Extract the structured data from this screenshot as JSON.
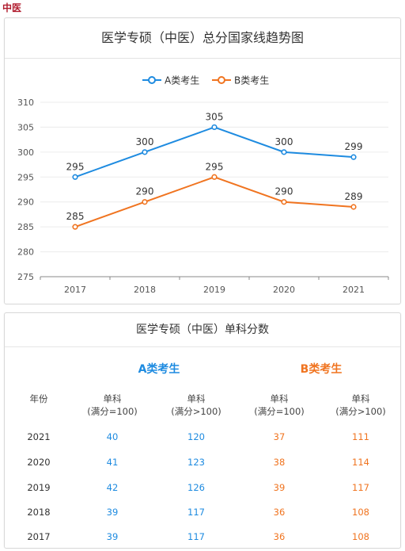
{
  "page_label": "中医",
  "chart_data": {
    "type": "line",
    "title": "医学专硕（中医）总分国家线趋势图",
    "x": [
      "2017",
      "2018",
      "2019",
      "2020",
      "2021"
    ],
    "series": [
      {
        "name": "A类考生",
        "color": "#1e8be0",
        "values": [
          295,
          300,
          305,
          300,
          299
        ]
      },
      {
        "name": "B类考生",
        "color": "#f07420",
        "values": [
          285,
          290,
          295,
          290,
          289
        ]
      }
    ],
    "y_ticks": [
      275,
      280,
      285,
      290,
      295,
      300,
      305,
      310
    ],
    "ylim": [
      275,
      310
    ],
    "legend_position": "top-center",
    "grid": true
  },
  "table": {
    "title": "医学专硕（中医）单科分数",
    "group_a": "A类考生",
    "group_b": "B类考生",
    "year_header": "年份",
    "col_main": "单科",
    "col_sub_1": "(满分=100)",
    "col_sub_2": "(满分>100)",
    "rows": [
      {
        "year": "2021",
        "a1": "40",
        "a2": "120",
        "b1": "37",
        "b2": "111"
      },
      {
        "year": "2020",
        "a1": "41",
        "a2": "123",
        "b1": "38",
        "b2": "114"
      },
      {
        "year": "2019",
        "a1": "42",
        "a2": "126",
        "b1": "39",
        "b2": "117"
      },
      {
        "year": "2018",
        "a1": "39",
        "a2": "117",
        "b1": "36",
        "b2": "108"
      },
      {
        "year": "2017",
        "a1": "39",
        "a2": "117",
        "b1": "36",
        "b2": "108"
      }
    ]
  }
}
